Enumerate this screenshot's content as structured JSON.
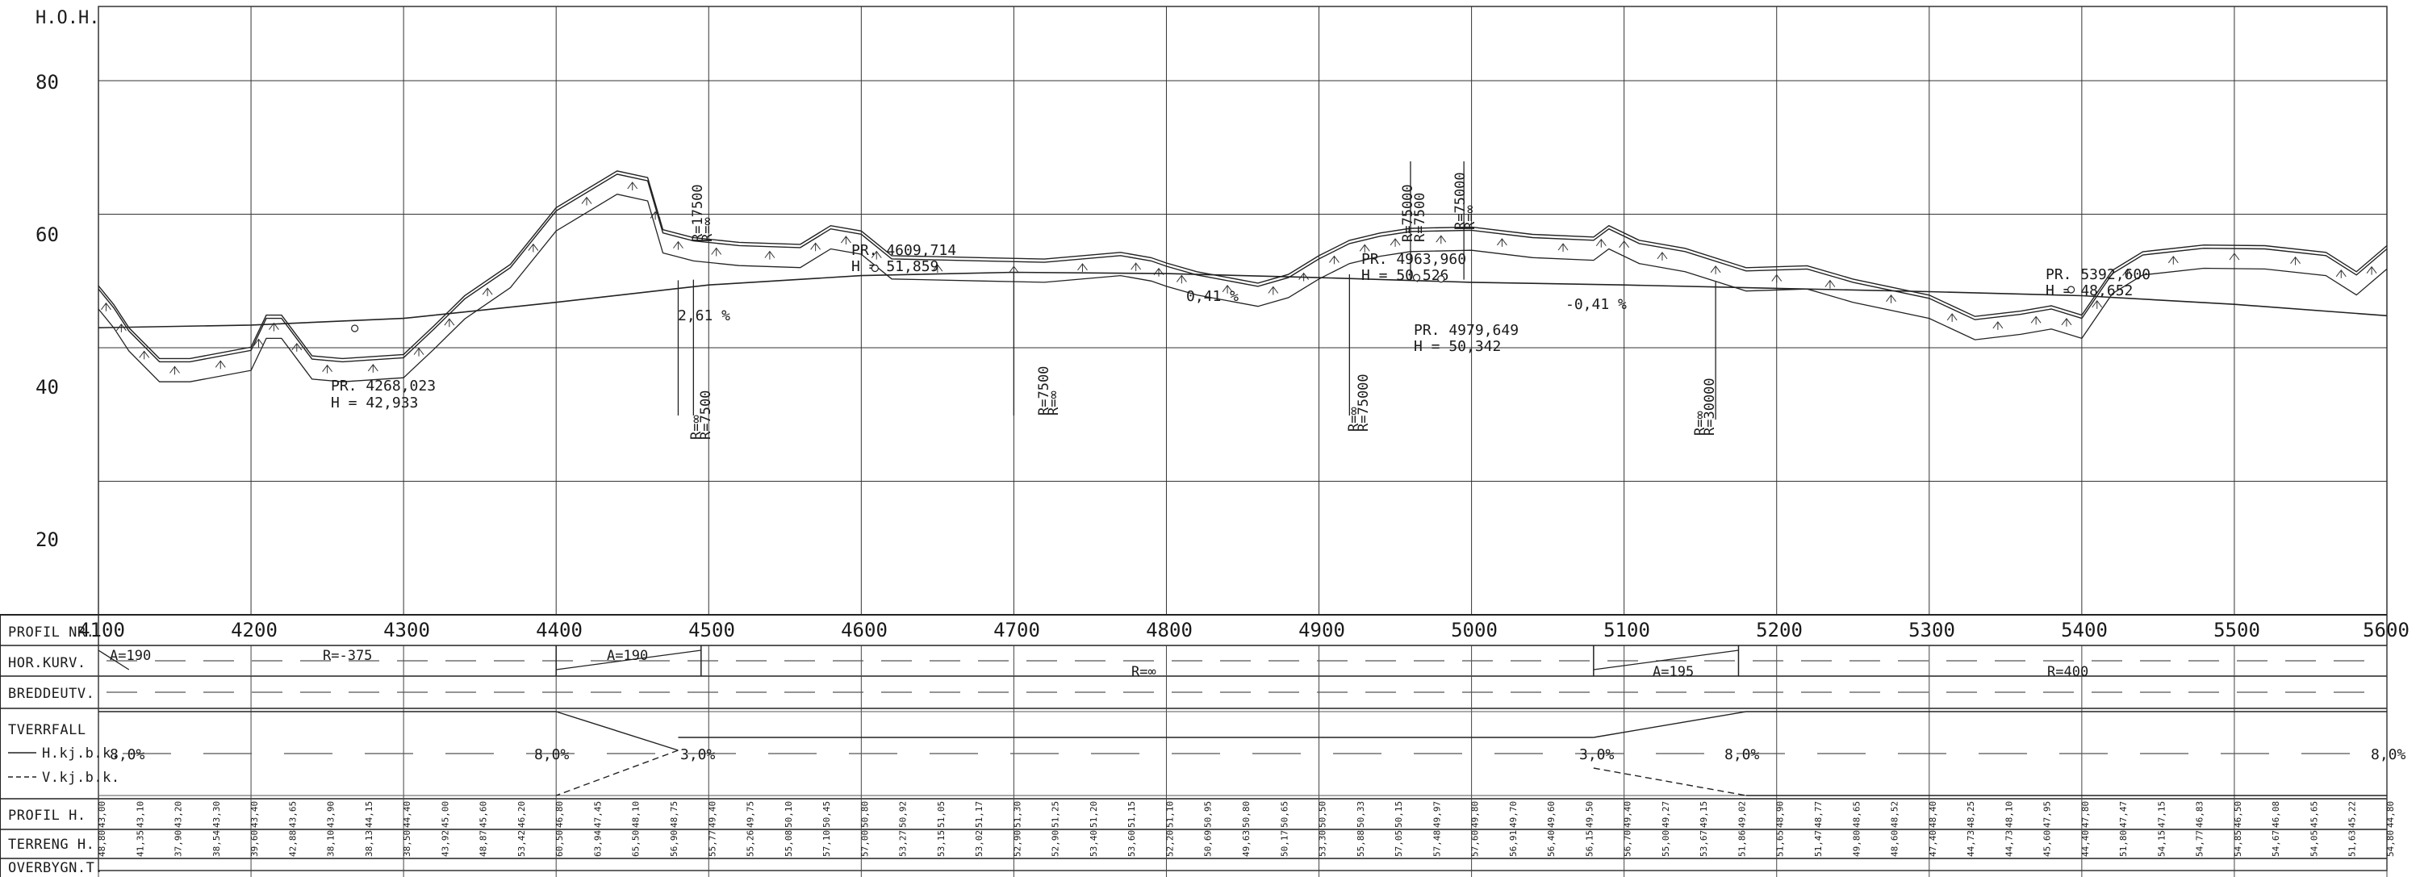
{
  "chart_data": {
    "type": "line",
    "y_unit_label": "H.O.H.",
    "ylim": [
      0,
      80
    ],
    "xlim": [
      4100,
      5600
    ],
    "y_ticks": [
      "80",
      "60",
      "40",
      "20"
    ],
    "x_ticks": [
      "4100",
      "4200",
      "4300",
      "4400",
      "4500",
      "4600",
      "4700",
      "4800",
      "4900",
      "5000",
      "5100",
      "5200",
      "5300",
      "5400",
      "5500",
      "5600"
    ],
    "series": [
      {
        "kind": "terrain",
        "x": [
          4100,
          4110,
          4120,
          4140,
          4160,
          4200,
          4210,
          4220,
          4240,
          4260,
          4300,
          4320,
          4340,
          4370,
          4400,
          4440,
          4460,
          4470,
          4490,
          4520,
          4560,
          4580,
          4600,
          4620,
          4680,
          4720,
          4770,
          4790,
          4800,
          4820,
          4860,
          4880,
          4900,
          4920,
          4940,
          4960,
          5000,
          5040,
          5080,
          5090,
          5110,
          5140,
          5180,
          5220,
          5250,
          5300,
          5330,
          5360,
          5380,
          5400,
          5420,
          5440,
          5480,
          5520,
          5560,
          5580,
          5600
        ],
        "y": [
          48.8,
          46,
          42.5,
          37.9,
          37.9,
          39.6,
          44.4,
          44.4,
          38.3,
          37.9,
          38.5,
          42.8,
          47.3,
          52,
          60.5,
          66,
          65,
          57.2,
          56,
          55.3,
          55,
          57.8,
          57,
          53.3,
          53,
          52.8,
          53.8,
          53,
          52.2,
          50.9,
          49.2,
          50.5,
          53.3,
          55.6,
          56.7,
          57.4,
          57.6,
          56.5,
          56.1,
          57.8,
          55.6,
          54.4,
          51.5,
          51.8,
          49.8,
          47.4,
          44.2,
          45,
          45.8,
          44.4,
          51.1,
          53.9,
          54.9,
          54.8,
          53.8,
          50.9,
          54.8
        ]
      },
      {
        "kind": "profile",
        "x": [
          4100,
          4200,
          4300,
          4400,
          4500,
          4600,
          4700,
          4800,
          4900,
          5000,
          5100,
          5200,
          5300,
          5400,
          5500,
          5600
        ],
        "y": [
          43,
          43.4,
          44.4,
          46.8,
          49.4,
          50.8,
          51.3,
          51.1,
          50.5,
          49.8,
          49.4,
          48.9,
          48.4,
          47.8,
          46.5,
          44.8
        ]
      }
    ]
  },
  "annotations": [
    {
      "text": "PR. 4268,023",
      "pos": "pr1a"
    },
    {
      "text": "H = 42,933",
      "pos": "pr1b"
    },
    {
      "text": "PR. 4609,714",
      "pos": "pr2a"
    },
    {
      "text": "H = 51,859",
      "pos": "pr2b"
    },
    {
      "text": "PR. 4963,960",
      "pos": "pr3a"
    },
    {
      "text": "H = 50,526",
      "pos": "pr3b"
    },
    {
      "text": "PR. 4979,649",
      "pos": "pr4a"
    },
    {
      "text": "H = 50,342",
      "pos": "pr4b"
    },
    {
      "text": "PR. 5392,600",
      "pos": "pr5a"
    },
    {
      "text": "H = 48,652",
      "pos": "pr5b"
    },
    {
      "text": "2,61 %",
      "pos": "g1"
    },
    {
      "text": "0,41 %",
      "pos": "g2"
    },
    {
      "text": "-0,41 %",
      "pos": "g3"
    }
  ],
  "vertical_radii": [
    "R=17500",
    "R=∞",
    "R=∞",
    "R=7500",
    "R=7500",
    "R=∞",
    "R=∞",
    "R=75000",
    "R=75000",
    "R=7500",
    "R=75000",
    "R=∞",
    "R=∞",
    "R=30000"
  ],
  "band_labels": {
    "profil_nr": "PROFIL NR.",
    "hor_kurv": "HOR.KURV.",
    "breddeutv": "BREDDEUTV.",
    "tverrfall": "TVERRFALL",
    "hkj": "H.kj.b.k.",
    "vkj": "V.kj.b.k.",
    "profil_h": "PROFIL H.",
    "terreng_h": "TERRENG H.",
    "overbygn": "OVERBYGN.T."
  },
  "hor_curves": [
    "A=190",
    "R=-375",
    "A=190",
    "R=∞",
    "A=195",
    "R=400"
  ],
  "tverrfall_values": [
    "8,0%",
    "8,0%",
    "3,0%",
    "3,0%",
    "8,0%",
    "8,0%"
  ]
}
